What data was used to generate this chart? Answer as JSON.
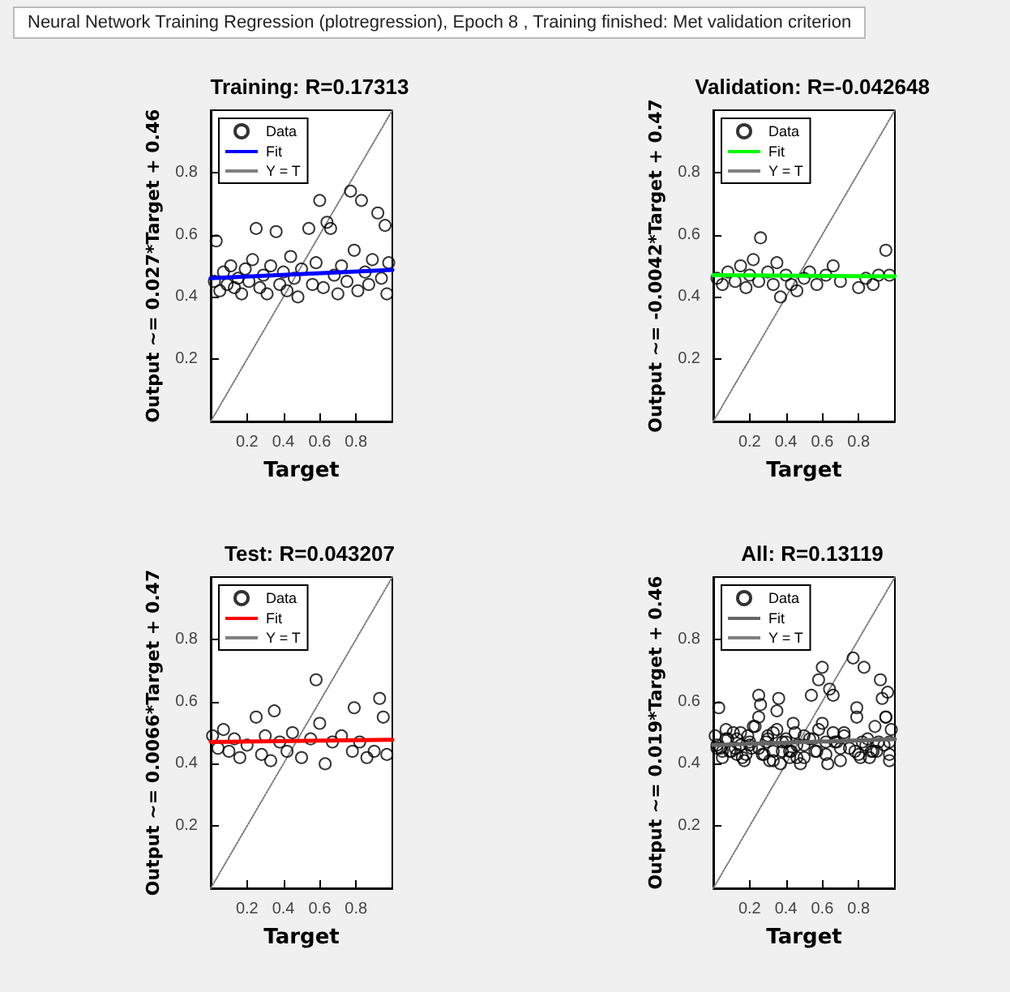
{
  "chart_data": [
    {
      "type": "scatter",
      "title": "Training: R=0.17313",
      "xlabel": "Target",
      "ylabel": "Output ~= 0.027*Target + 0.46",
      "annotations": [
        "Neural Network Training Regression (plotregression), Epoch 8 , Training finished: Met validation criterion"
      ],
      "xlim": [
        0,
        1
      ],
      "xticks": [
        0.2,
        0.4,
        0.6,
        0.8
      ],
      "ylim": [
        0,
        1
      ],
      "yticks": [
        0.2,
        0.4,
        0.6,
        0.8
      ],
      "legend": "top left",
      "series": [
        {
          "name": "Data",
          "type": "scatter",
          "marker": "circle",
          "color": "#000000",
          "x": [
            0.02,
            0.03,
            0.05,
            0.07,
            0.09,
            0.11,
            0.13,
            0.15,
            0.17,
            0.19,
            0.21,
            0.23,
            0.25,
            0.27,
            0.29,
            0.31,
            0.33,
            0.36,
            0.38,
            0.4,
            0.42,
            0.44,
            0.46,
            0.48,
            0.5,
            0.54,
            0.56,
            0.58,
            0.6,
            0.62,
            0.64,
            0.66,
            0.68,
            0.7,
            0.72,
            0.75,
            0.77,
            0.79,
            0.81,
            0.83,
            0.85,
            0.87,
            0.89,
            0.92,
            0.94,
            0.96,
            0.97,
            0.98
          ],
          "values": [
            0.45,
            0.58,
            0.42,
            0.48,
            0.44,
            0.5,
            0.43,
            0.46,
            0.41,
            0.49,
            0.45,
            0.52,
            0.62,
            0.43,
            0.47,
            0.41,
            0.5,
            0.61,
            0.44,
            0.48,
            0.42,
            0.53,
            0.46,
            0.4,
            0.49,
            0.62,
            0.44,
            0.51,
            0.71,
            0.43,
            0.64,
            0.62,
            0.47,
            0.41,
            0.5,
            0.45,
            0.74,
            0.55,
            0.42,
            0.71,
            0.48,
            0.44,
            0.52,
            0.67,
            0.46,
            0.63,
            0.41,
            0.51
          ]
        },
        {
          "name": "Fit",
          "type": "line",
          "line_style": "solid",
          "color": "#0000ff",
          "x": [
            0,
            1
          ],
          "values": [
            0.46,
            0.487
          ]
        },
        {
          "name": "Y = T",
          "type": "line",
          "line_style": "dotted",
          "color": "#808080",
          "x": [
            0,
            1
          ],
          "values": [
            0,
            1
          ]
        }
      ]
    },
    {
      "type": "scatter",
      "title": "Validation: R=-0.042648",
      "xlabel": "Target",
      "ylabel": "Output ~= -0.0042*Target + 0.47",
      "xlim": [
        0,
        1
      ],
      "xticks": [
        0.2,
        0.4,
        0.6,
        0.8
      ],
      "ylim": [
        0,
        1
      ],
      "yticks": [
        0.2,
        0.4,
        0.6,
        0.8
      ],
      "legend": "top left",
      "series": [
        {
          "name": "Data",
          "type": "scatter",
          "marker": "circle",
          "color": "#000000",
          "x": [
            0.02,
            0.05,
            0.08,
            0.12,
            0.15,
            0.18,
            0.2,
            0.22,
            0.25,
            0.26,
            0.3,
            0.33,
            0.35,
            0.37,
            0.4,
            0.43,
            0.46,
            0.5,
            0.53,
            0.57,
            0.62,
            0.66,
            0.7,
            0.8,
            0.84,
            0.88,
            0.91,
            0.95,
            0.97
          ],
          "values": [
            0.46,
            0.44,
            0.48,
            0.45,
            0.5,
            0.43,
            0.47,
            0.52,
            0.45,
            0.59,
            0.48,
            0.44,
            0.51,
            0.4,
            0.47,
            0.44,
            0.42,
            0.46,
            0.48,
            0.44,
            0.47,
            0.5,
            0.45,
            0.43,
            0.46,
            0.44,
            0.47,
            0.55,
            0.47
          ]
        },
        {
          "name": "Fit",
          "type": "line",
          "line_style": "solid",
          "color": "#00ff00",
          "x": [
            0,
            1
          ],
          "values": [
            0.47,
            0.466
          ]
        },
        {
          "name": "Y = T",
          "type": "line",
          "line_style": "dotted",
          "color": "#808080",
          "x": [
            0,
            1
          ],
          "values": [
            0,
            1
          ]
        }
      ]
    },
    {
      "type": "scatter",
      "title": "Test: R=0.043207",
      "xlabel": "Target",
      "ylabel": "Output ~= 0.0066*Target + 0.47",
      "xlim": [
        0,
        1
      ],
      "xticks": [
        0.2,
        0.4,
        0.6,
        0.8
      ],
      "ylim": [
        0,
        1
      ],
      "yticks": [
        0.2,
        0.4,
        0.6,
        0.8
      ],
      "legend": "top left",
      "series": [
        {
          "name": "Data",
          "type": "scatter",
          "marker": "circle",
          "color": "#000000",
          "x": [
            0.01,
            0.04,
            0.07,
            0.1,
            0.13,
            0.16,
            0.2,
            0.25,
            0.28,
            0.3,
            0.33,
            0.35,
            0.38,
            0.42,
            0.45,
            0.5,
            0.55,
            0.58,
            0.6,
            0.63,
            0.67,
            0.72,
            0.79,
            0.78,
            0.82,
            0.86,
            0.9,
            0.93,
            0.95,
            0.97
          ],
          "values": [
            0.49,
            0.45,
            0.51,
            0.44,
            0.48,
            0.42,
            0.46,
            0.55,
            0.43,
            0.49,
            0.41,
            0.57,
            0.47,
            0.44,
            0.5,
            0.42,
            0.48,
            0.67,
            0.53,
            0.4,
            0.47,
            0.49,
            0.58,
            0.44,
            0.47,
            0.42,
            0.44,
            0.61,
            0.55,
            0.43
          ]
        },
        {
          "name": "Fit",
          "type": "line",
          "line_style": "solid",
          "color": "#ff0000",
          "x": [
            0,
            1
          ],
          "values": [
            0.47,
            0.477
          ]
        },
        {
          "name": "Y = T",
          "type": "line",
          "line_style": "dotted",
          "color": "#808080",
          "x": [
            0,
            1
          ],
          "values": [
            0,
            1
          ]
        }
      ]
    },
    {
      "type": "scatter",
      "title": "All: R=0.13119",
      "xlabel": "Target",
      "ylabel": "Output ~= 0.019*Target + 0.46",
      "xlim": [
        0,
        1
      ],
      "xticks": [
        0.2,
        0.4,
        0.6,
        0.8
      ],
      "ylim": [
        0,
        1
      ],
      "yticks": [
        0.2,
        0.4,
        0.6,
        0.8
      ],
      "legend": "top left",
      "series": [
        {
          "name": "Data",
          "type": "scatter",
          "marker": "circle",
          "color": "#000000",
          "x": [
            0.02,
            0.03,
            0.05,
            0.07,
            0.09,
            0.11,
            0.13,
            0.15,
            0.17,
            0.19,
            0.21,
            0.23,
            0.25,
            0.27,
            0.29,
            0.31,
            0.33,
            0.36,
            0.38,
            0.4,
            0.42,
            0.44,
            0.46,
            0.48,
            0.5,
            0.54,
            0.56,
            0.58,
            0.6,
            0.62,
            0.64,
            0.66,
            0.68,
            0.7,
            0.72,
            0.75,
            0.77,
            0.79,
            0.81,
            0.83,
            0.85,
            0.87,
            0.89,
            0.92,
            0.94,
            0.96,
            0.97,
            0.98,
            0.02,
            0.05,
            0.08,
            0.12,
            0.15,
            0.18,
            0.2,
            0.22,
            0.25,
            0.26,
            0.3,
            0.33,
            0.35,
            0.37,
            0.4,
            0.43,
            0.46,
            0.5,
            0.53,
            0.57,
            0.62,
            0.66,
            0.7,
            0.8,
            0.84,
            0.88,
            0.91,
            0.95,
            0.97,
            0.01,
            0.04,
            0.07,
            0.1,
            0.13,
            0.16,
            0.2,
            0.25,
            0.28,
            0.3,
            0.33,
            0.35,
            0.38,
            0.42,
            0.45,
            0.5,
            0.55,
            0.58,
            0.6,
            0.63,
            0.67,
            0.72,
            0.79,
            0.78,
            0.82,
            0.86,
            0.9,
            0.93,
            0.95,
            0.97
          ],
          "values": [
            0.45,
            0.58,
            0.42,
            0.48,
            0.44,
            0.5,
            0.43,
            0.46,
            0.41,
            0.49,
            0.45,
            0.52,
            0.62,
            0.43,
            0.47,
            0.41,
            0.5,
            0.61,
            0.44,
            0.48,
            0.42,
            0.53,
            0.46,
            0.4,
            0.49,
            0.62,
            0.44,
            0.51,
            0.71,
            0.43,
            0.64,
            0.62,
            0.47,
            0.41,
            0.5,
            0.45,
            0.74,
            0.55,
            0.42,
            0.71,
            0.48,
            0.44,
            0.52,
            0.67,
            0.46,
            0.63,
            0.41,
            0.51,
            0.46,
            0.44,
            0.48,
            0.45,
            0.5,
            0.43,
            0.47,
            0.52,
            0.45,
            0.59,
            0.48,
            0.44,
            0.51,
            0.4,
            0.47,
            0.44,
            0.42,
            0.46,
            0.48,
            0.44,
            0.47,
            0.5,
            0.45,
            0.43,
            0.46,
            0.44,
            0.47,
            0.55,
            0.47,
            0.49,
            0.45,
            0.51,
            0.44,
            0.48,
            0.42,
            0.46,
            0.55,
            0.43,
            0.49,
            0.41,
            0.57,
            0.47,
            0.44,
            0.5,
            0.42,
            0.48,
            0.67,
            0.53,
            0.4,
            0.47,
            0.49,
            0.58,
            0.44,
            0.47,
            0.42,
            0.44,
            0.61,
            0.55,
            0.43
          ]
        },
        {
          "name": "Fit",
          "type": "line",
          "line_style": "solid",
          "color": "#666666",
          "x": [
            0,
            1
          ],
          "values": [
            0.46,
            0.479
          ]
        },
        {
          "name": "Y = T",
          "type": "line",
          "line_style": "dotted",
          "color": "#808080",
          "x": [
            0,
            1
          ],
          "values": [
            0,
            1
          ]
        }
      ]
    }
  ]
}
